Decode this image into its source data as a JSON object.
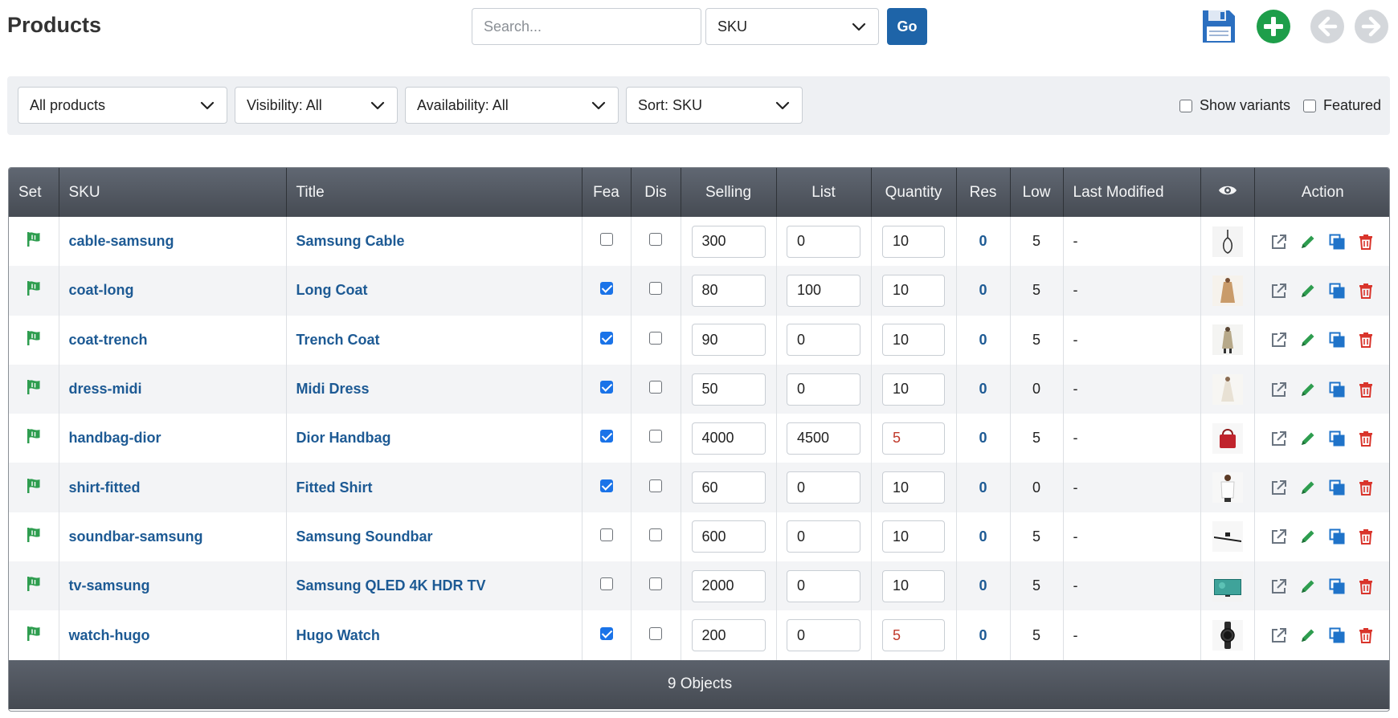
{
  "header": {
    "title": "Products",
    "search_placeholder": "Search...",
    "search_field": "SKU",
    "go_label": "Go"
  },
  "filters": {
    "category": "All products",
    "visibility": "Visibility: All",
    "availability": "Availability: All",
    "sort": "Sort: SKU",
    "show_variants_label": "Show variants",
    "featured_label": "Featured"
  },
  "columns": [
    "Set",
    "SKU",
    "Title",
    "Fea",
    "Dis",
    "Selling",
    "List",
    "Quantity",
    "Res",
    "Low",
    "Last Modified",
    "",
    "Action"
  ],
  "rows": [
    {
      "sku": "cable-samsung",
      "title": "Samsung Cable",
      "fea": false,
      "dis": false,
      "selling": "300",
      "list": "0",
      "quantity": "10",
      "qty_low": false,
      "res": "0",
      "low": "5",
      "modified": "-",
      "thumb": "cable"
    },
    {
      "sku": "coat-long",
      "title": "Long Coat",
      "fea": true,
      "dis": false,
      "selling": "80",
      "list": "100",
      "quantity": "10",
      "qty_low": false,
      "res": "0",
      "low": "5",
      "modified": "-",
      "thumb": "coat-long"
    },
    {
      "sku": "coat-trench",
      "title": "Trench Coat",
      "fea": true,
      "dis": false,
      "selling": "90",
      "list": "0",
      "quantity": "10",
      "qty_low": false,
      "res": "0",
      "low": "5",
      "modified": "-",
      "thumb": "coat-trench"
    },
    {
      "sku": "dress-midi",
      "title": "Midi Dress",
      "fea": true,
      "dis": false,
      "selling": "50",
      "list": "0",
      "quantity": "10",
      "qty_low": false,
      "res": "0",
      "low": "0",
      "modified": "-",
      "thumb": "dress"
    },
    {
      "sku": "handbag-dior",
      "title": "Dior Handbag",
      "fea": true,
      "dis": false,
      "selling": "4000",
      "list": "4500",
      "quantity": "5",
      "qty_low": true,
      "res": "0",
      "low": "5",
      "modified": "-",
      "thumb": "handbag"
    },
    {
      "sku": "shirt-fitted",
      "title": "Fitted Shirt",
      "fea": true,
      "dis": false,
      "selling": "60",
      "list": "0",
      "quantity": "10",
      "qty_low": false,
      "res": "0",
      "low": "0",
      "modified": "-",
      "thumb": "shirt"
    },
    {
      "sku": "soundbar-samsung",
      "title": "Samsung Soundbar",
      "fea": false,
      "dis": false,
      "selling": "600",
      "list": "0",
      "quantity": "10",
      "qty_low": false,
      "res": "0",
      "low": "5",
      "modified": "-",
      "thumb": "soundbar"
    },
    {
      "sku": "tv-samsung",
      "title": "Samsung QLED 4K HDR TV",
      "fea": false,
      "dis": false,
      "selling": "2000",
      "list": "0",
      "quantity": "10",
      "qty_low": false,
      "res": "0",
      "low": "5",
      "modified": "-",
      "thumb": "tv"
    },
    {
      "sku": "watch-hugo",
      "title": "Hugo Watch",
      "fea": true,
      "dis": false,
      "selling": "200",
      "list": "0",
      "quantity": "5",
      "qty_low": true,
      "res": "0",
      "low": "5",
      "modified": "-",
      "thumb": "watch"
    }
  ],
  "footer": {
    "count_label": "9 Objects"
  },
  "icons": {
    "save": "floppy-disk-icon",
    "add": "plus-circle-icon",
    "prev": "arrow-left-circle-icon",
    "next": "arrow-right-circle-icon",
    "set": "flag-icon",
    "visibility_header": "eye-icon",
    "actions": [
      "external-link-icon",
      "pencil-icon",
      "duplicate-icon",
      "trash-icon"
    ]
  },
  "colors": {
    "accent": "#1e64a8",
    "link": "#1d5a94",
    "add": "#1e9e4a",
    "delete": "#d9342b",
    "flag": "#2e9d4f",
    "header_bg": "#51575f",
    "low_stock": "#c0392b"
  }
}
